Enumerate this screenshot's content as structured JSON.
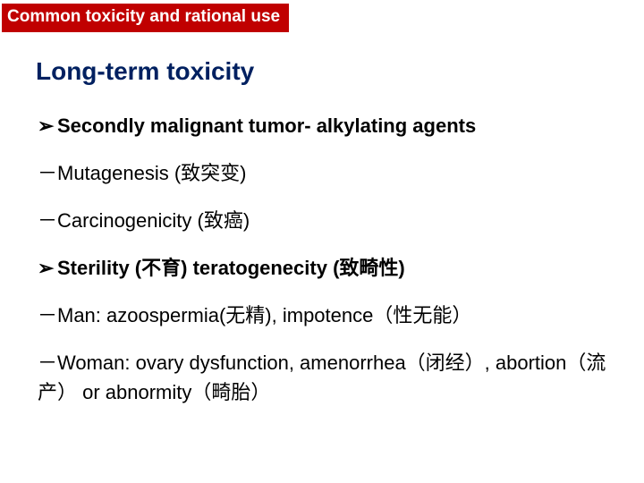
{
  "header": {
    "banner": "Common toxicity and rational use"
  },
  "title": "Long-term toxicity",
  "lines": [
    {
      "marker": "➢",
      "text": "Secondly malignant tumor- alkylating agents",
      "bold": true
    },
    {
      "marker": "－",
      "text": "Mutagenesis (致突变)",
      "bold": false
    },
    {
      "marker": "－",
      "text": "Carcinogenicity (致癌)",
      "bold": false
    },
    {
      "marker": "➢",
      "text": "Sterility (不育) teratogenecity (致畸性)",
      "bold": true
    },
    {
      "marker": "－",
      "text": "Man: azoospermia(无精), impotence（性无能）",
      "bold": false
    },
    {
      "marker": "－",
      "text": "Woman: ovary dysfunction, amenorrhea（闭经）, abortion（流产） or abnormity（畸胎）",
      "bold": false
    }
  ],
  "colors": {
    "banner_bg": "#c00000",
    "banner_text": "#ffffff",
    "title_text": "#002060",
    "body_text": "#000000",
    "background": "#ffffff"
  }
}
